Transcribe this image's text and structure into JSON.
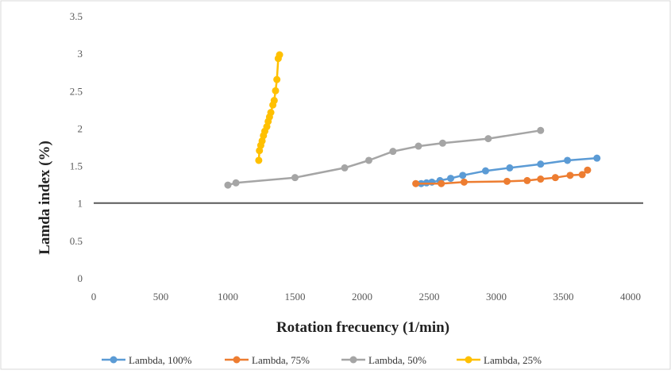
{
  "chart_data": {
    "type": "scatter",
    "title": "",
    "xlabel": "Rotation frecuency (1/min)",
    "ylabel": "Lamda index (%)",
    "xlim": [
      0,
      4000
    ],
    "ylim": [
      0,
      3.5
    ],
    "xticks": [
      0,
      500,
      1000,
      1500,
      2000,
      2500,
      3000,
      3500,
      4000
    ],
    "yticks": [
      0,
      0.5,
      1,
      1.5,
      2,
      2.5,
      3,
      3.5
    ],
    "xtick_labels": [
      "0",
      "500",
      "1000",
      "1500",
      "2000",
      "2500",
      "3000",
      "3500",
      "4000"
    ],
    "ytick_labels": [
      "0",
      "0.5",
      "1",
      "1.5",
      "2",
      "2.5",
      "3",
      "3.5"
    ],
    "grid": false,
    "legend_position": "bottom",
    "reference_line": {
      "y": 1,
      "color": "#595959"
    },
    "series": [
      {
        "name": "Lambda, 100%",
        "color": "#5B9BD5",
        "x": [
          2440,
          2480,
          2520,
          2580,
          2660,
          2750,
          2920,
          3100,
          3330,
          3530,
          3750
        ],
        "y": [
          1.26,
          1.27,
          1.28,
          1.3,
          1.33,
          1.37,
          1.43,
          1.47,
          1.52,
          1.57,
          1.6
        ]
      },
      {
        "name": "Lambda, 75%",
        "color": "#ED7D31",
        "x": [
          2400,
          2590,
          2760,
          3080,
          3230,
          3330,
          3440,
          3550,
          3640,
          3680
        ],
        "y": [
          1.26,
          1.26,
          1.28,
          1.29,
          1.3,
          1.32,
          1.34,
          1.37,
          1.38,
          1.44
        ]
      },
      {
        "name": "Lambda, 50%",
        "color": "#A5A5A5",
        "x": [
          1000,
          1060,
          1500,
          1870,
          2050,
          2230,
          2420,
          2600,
          2940,
          3330
        ],
        "y": [
          1.24,
          1.27,
          1.34,
          1.47,
          1.57,
          1.69,
          1.76,
          1.8,
          1.86,
          1.97
        ]
      },
      {
        "name": "Lambda, 25%",
        "color": "#FFC000",
        "x": [
          1230,
          1235,
          1245,
          1255,
          1265,
          1275,
          1290,
          1300,
          1310,
          1320,
          1335,
          1345,
          1355,
          1365,
          1375,
          1385
        ],
        "y": [
          1.57,
          1.7,
          1.77,
          1.83,
          1.9,
          1.96,
          2.02,
          2.09,
          2.15,
          2.21,
          2.31,
          2.37,
          2.5,
          2.65,
          2.93,
          2.98
        ]
      }
    ]
  }
}
